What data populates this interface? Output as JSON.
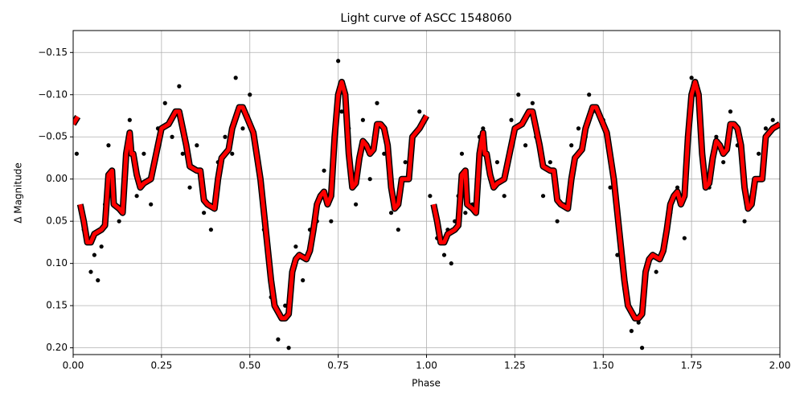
{
  "chart_data": {
    "type": "scatter",
    "title": "Light curve of ASCC 1548060",
    "xlabel": "Phase",
    "ylabel": "Δ Magnitude",
    "xlim": [
      0,
      2
    ],
    "ylim": [
      0.208,
      -0.176
    ],
    "xticks": [
      {
        "value": 0,
        "label": "0.00"
      },
      {
        "value": 0.25,
        "label": "0.25"
      },
      {
        "value": 0.5,
        "label": "0.50"
      },
      {
        "value": 0.75,
        "label": "0.75"
      },
      {
        "value": 1,
        "label": "1.00"
      },
      {
        "value": 1.25,
        "label": "1.25"
      },
      {
        "value": 1.5,
        "label": "1.50"
      },
      {
        "value": 1.75,
        "label": "1.75"
      },
      {
        "value": 2,
        "label": "2.00"
      }
    ],
    "yticks": [
      {
        "value": -0.15,
        "label": "−0.15"
      },
      {
        "value": -0.1,
        "label": "−0.10"
      },
      {
        "value": -0.05,
        "label": "−0.05"
      },
      {
        "value": 0,
        "label": "0.00"
      },
      {
        "value": 0.05,
        "label": "0.05"
      },
      {
        "value": 0.1,
        "label": "0.10"
      },
      {
        "value": 0.15,
        "label": "0.15"
      },
      {
        "value": 0.2,
        "label": "0.20"
      }
    ],
    "grid": true,
    "points": {
      "color": "#000000",
      "x": [
        0.01,
        0.03,
        0.05,
        0.06,
        0.07,
        0.08,
        0.09,
        0.1,
        0.11,
        0.13,
        0.15,
        0.16,
        0.18,
        0.2,
        0.22,
        0.24,
        0.26,
        0.28,
        0.3,
        0.31,
        0.33,
        0.35,
        0.37,
        0.39,
        0.41,
        0.43,
        0.45,
        0.46,
        0.48,
        0.5,
        0.52,
        0.54,
        0.56,
        0.58,
        0.6,
        0.61,
        0.63,
        0.65,
        0.67,
        0.69,
        0.71,
        0.73,
        0.75,
        0.76,
        0.78,
        0.8,
        0.82,
        0.84,
        0.86,
        0.88,
        0.9,
        0.92,
        0.94,
        0.96,
        0.98,
        1.01,
        1.03,
        1.05,
        1.06,
        1.07,
        1.08,
        1.09,
        1.1,
        1.11,
        1.13,
        1.15,
        1.16,
        1.18,
        1.2,
        1.22,
        1.24,
        1.26,
        1.28,
        1.3,
        1.31,
        1.33,
        1.35,
        1.37,
        1.39,
        1.41,
        1.43,
        1.45,
        1.46,
        1.48,
        1.5,
        1.52,
        1.54,
        1.56,
        1.58,
        1.6,
        1.61,
        1.63,
        1.65,
        1.67,
        1.69,
        1.71,
        1.73,
        1.75,
        1.76,
        1.78,
        1.8,
        1.82,
        1.84,
        1.86,
        1.88,
        1.9,
        1.92,
        1.94,
        1.96,
        1.98
      ],
      "y": [
        -0.03,
        0.06,
        0.11,
        0.09,
        0.12,
        0.08,
        0.03,
        -0.04,
        0.02,
        0.05,
        -0.02,
        -0.07,
        0.02,
        -0.03,
        0.03,
        -0.06,
        -0.09,
        -0.05,
        -0.11,
        -0.03,
        0.01,
        -0.04,
        0.04,
        0.06,
        -0.02,
        -0.05,
        -0.03,
        -0.12,
        -0.06,
        -0.1,
        -0.02,
        0.06,
        0.14,
        0.19,
        0.15,
        0.2,
        0.08,
        0.12,
        0.06,
        0.05,
        -0.01,
        0.05,
        -0.14,
        -0.08,
        -0.06,
        0.03,
        -0.07,
        0.0,
        -0.09,
        -0.03,
        0.04,
        0.06,
        -0.02,
        -0.04,
        -0.08,
        0.02,
        0.07,
        0.09,
        0.06,
        0.1,
        0.05,
        0.02,
        -0.03,
        0.04,
        0.03,
        -0.05,
        -0.06,
        0.0,
        -0.02,
        0.02,
        -0.07,
        -0.1,
        -0.04,
        -0.09,
        -0.05,
        0.02,
        -0.02,
        0.05,
        0.03,
        -0.04,
        -0.06,
        -0.05,
        -0.1,
        -0.08,
        -0.07,
        0.01,
        0.09,
        0.13,
        0.18,
        0.17,
        0.2,
        0.1,
        0.11,
        0.08,
        0.04,
        0.01,
        0.07,
        -0.12,
        -0.1,
        -0.04,
        0.01,
        -0.05,
        -0.02,
        -0.08,
        -0.04,
        0.05,
        0.02,
        -0.03,
        -0.06,
        -0.07
      ]
    },
    "model": {
      "color": "#ff0000",
      "edgecolor": "#000000",
      "x": [
        0.0,
        0.013,
        null,
        0.02,
        0.03,
        0.04,
        0.05,
        0.06,
        0.08,
        0.09,
        0.1,
        0.11,
        0.115,
        0.13,
        0.14,
        0.15,
        0.16,
        0.165,
        0.17,
        0.18,
        0.19,
        0.2,
        0.22,
        0.24,
        0.25,
        0.27,
        0.29,
        0.3,
        0.31,
        0.32,
        0.33,
        0.35,
        0.36,
        0.37,
        0.38,
        0.4,
        0.41,
        0.42,
        0.44,
        0.45,
        0.47,
        0.48,
        0.5,
        0.51,
        0.53,
        0.55,
        0.56,
        0.57,
        0.59,
        0.6,
        0.61,
        0.62,
        0.63,
        0.64,
        0.66,
        0.67,
        0.68,
        0.69,
        0.7,
        0.71,
        0.72,
        0.73,
        0.74,
        0.75,
        0.76,
        0.77,
        0.78,
        0.79,
        0.8,
        0.81,
        0.82,
        0.83,
        0.84,
        0.85,
        0.86,
        0.87,
        0.88,
        0.89,
        0.9,
        0.91,
        0.92,
        0.93,
        0.95,
        0.96,
        0.98,
        1.0,
        null,
        1.02,
        1.03,
        1.04,
        1.05,
        1.06,
        1.08,
        1.09,
        1.1,
        1.11,
        1.115,
        1.13,
        1.14,
        1.15,
        1.16,
        1.165,
        1.17,
        1.18,
        1.19,
        1.2,
        1.22,
        1.24,
        1.25,
        1.27,
        1.29,
        1.3,
        1.31,
        1.32,
        1.33,
        1.35,
        1.36,
        1.37,
        1.38,
        1.4,
        1.41,
        1.42,
        1.44,
        1.45,
        1.47,
        1.48,
        1.5,
        1.51,
        1.53,
        1.55,
        1.56,
        1.57,
        1.59,
        1.6,
        1.61,
        1.62,
        1.63,
        1.64,
        1.66,
        1.67,
        1.68,
        1.69,
        1.7,
        1.71,
        1.72,
        1.73,
        1.74,
        1.75,
        1.76,
        1.77,
        1.78,
        1.79,
        1.8,
        1.81,
        1.82,
        1.83,
        1.84,
        1.85,
        1.86,
        1.87,
        1.88,
        1.89,
        1.9,
        1.91,
        1.92,
        1.93,
        1.95,
        1.96,
        1.98,
        2.0
      ],
      "y": [
        -0.065,
        -0.074,
        null,
        0.03,
        0.05,
        0.075,
        0.075,
        0.065,
        0.06,
        0.055,
        -0.005,
        -0.01,
        0.03,
        0.035,
        0.04,
        -0.03,
        -0.055,
        -0.03,
        -0.03,
        -0.005,
        0.01,
        0.005,
        0.0,
        -0.04,
        -0.06,
        -0.065,
        -0.08,
        -0.08,
        -0.06,
        -0.04,
        -0.015,
        -0.01,
        -0.01,
        0.025,
        0.03,
        0.035,
        0.0,
        -0.025,
        -0.035,
        -0.06,
        -0.085,
        -0.085,
        -0.065,
        -0.055,
        0.0,
        0.08,
        0.12,
        0.15,
        0.165,
        0.165,
        0.16,
        0.11,
        0.095,
        0.09,
        0.095,
        0.085,
        0.06,
        0.03,
        0.02,
        0.015,
        0.03,
        0.02,
        -0.05,
        -0.1,
        -0.115,
        -0.1,
        -0.03,
        0.01,
        0.005,
        -0.025,
        -0.045,
        -0.04,
        -0.03,
        -0.035,
        -0.065,
        -0.065,
        -0.06,
        -0.04,
        0.01,
        0.035,
        0.03,
        0.0,
        0.0,
        -0.05,
        -0.06,
        -0.075,
        null,
        0.03,
        0.05,
        0.075,
        0.075,
        0.065,
        0.06,
        0.055,
        -0.005,
        -0.01,
        0.03,
        0.035,
        0.04,
        -0.03,
        -0.055,
        -0.03,
        -0.03,
        -0.005,
        0.01,
        0.005,
        0.0,
        -0.04,
        -0.06,
        -0.065,
        -0.08,
        -0.08,
        -0.06,
        -0.04,
        -0.015,
        -0.01,
        -0.01,
        0.025,
        0.03,
        0.035,
        0.0,
        -0.025,
        -0.035,
        -0.06,
        -0.085,
        -0.085,
        -0.065,
        -0.055,
        0.0,
        0.08,
        0.12,
        0.15,
        0.165,
        0.165,
        0.16,
        0.11,
        0.095,
        0.09,
        0.095,
        0.085,
        0.06,
        0.03,
        0.02,
        0.015,
        0.03,
        0.02,
        -0.05,
        -0.1,
        -0.115,
        -0.1,
        -0.03,
        0.01,
        0.005,
        -0.025,
        -0.045,
        -0.04,
        -0.03,
        -0.035,
        -0.065,
        -0.065,
        -0.06,
        -0.04,
        0.01,
        0.035,
        0.03,
        0.0,
        0.0,
        -0.05,
        -0.06,
        -0.065
      ]
    }
  }
}
